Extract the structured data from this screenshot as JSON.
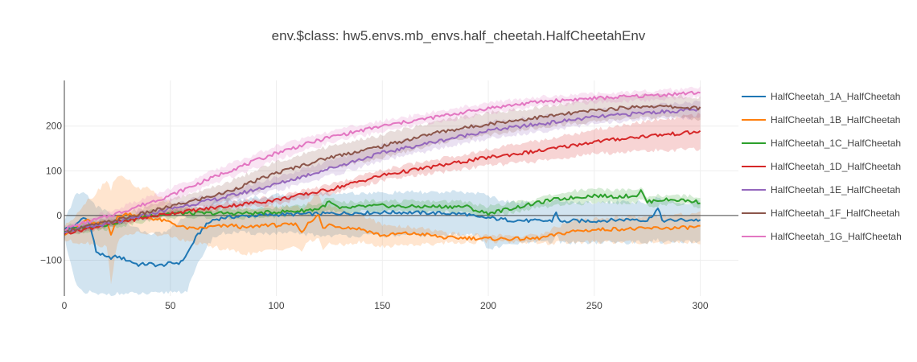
{
  "chart_data": {
    "type": "line",
    "title": "env.$class: hw5.envs.mb_envs.half_cheetah.HalfCheetahEnv",
    "xlabel": "",
    "ylabel": "",
    "xlim": [
      0,
      318
    ],
    "ylim": [
      -180,
      302
    ],
    "x_ticks": [
      0,
      50,
      100,
      150,
      200,
      250,
      300
    ],
    "y_ticks": [
      -100,
      0,
      100,
      200
    ],
    "x_tick_labels": [
      "0",
      "50",
      "100",
      "150",
      "200",
      "250",
      "300"
    ],
    "y_tick_labels": [
      "−100",
      "0",
      "100",
      "200"
    ],
    "grid": true,
    "legend_position": "right",
    "shaded_band": "variance band around each series",
    "series": [
      {
        "name": "HalfCheetah_1A_HalfCheetah",
        "color": "#1f77b4",
        "x": [
          0,
          5,
          8,
          10,
          12,
          15,
          20,
          25,
          30,
          35,
          40,
          45,
          50,
          55,
          58,
          62,
          66,
          70,
          75,
          80,
          90,
          100,
          110,
          120,
          130,
          140,
          150,
          160,
          170,
          180,
          190,
          195,
          200,
          205,
          210,
          220,
          230,
          232,
          234,
          240,
          250,
          260,
          270,
          275,
          280,
          282,
          284,
          290,
          300
        ],
        "y": [
          -30,
          -25,
          -8,
          -3,
          -20,
          -80,
          -95,
          -92,
          -100,
          -110,
          -108,
          -112,
          -107,
          -105,
          -85,
          -50,
          -25,
          -10,
          -5,
          -3,
          0,
          2,
          3,
          4,
          5,
          6,
          7,
          7,
          6,
          5,
          3,
          -5,
          -5,
          -8,
          -10,
          -12,
          -12,
          8,
          -15,
          -12,
          -12,
          -10,
          -8,
          -12,
          15,
          -10,
          -12,
          -10,
          -10
        ],
        "lower": [
          -45,
          -150,
          -170,
          -175,
          -170,
          -178,
          -175,
          -175,
          -175,
          -175,
          -175,
          -175,
          -170,
          -170,
          -168,
          -120,
          -80,
          -50,
          -40,
          -38,
          -40,
          -40,
          -40,
          -45,
          -45,
          -45,
          -45,
          -45,
          -45,
          -45,
          -40,
          -45,
          -75,
          -70,
          -65,
          -60,
          -60,
          -45,
          -60,
          -60,
          -60,
          -60,
          -60,
          -60,
          -55,
          -60,
          -60,
          -60,
          -60
        ],
        "upper": [
          -15,
          45,
          50,
          50,
          40,
          20,
          10,
          0,
          -20,
          -30,
          -40,
          -40,
          -30,
          -10,
          0,
          10,
          20,
          30,
          35,
          35,
          40,
          45,
          48,
          50,
          50,
          50,
          50,
          52,
          52,
          52,
          52,
          50,
          45,
          35,
          30,
          30,
          30,
          40,
          30,
          30,
          30,
          30,
          30,
          28,
          40,
          30,
          30,
          30,
          30
        ]
      },
      {
        "name": "HalfCheetah_1B_HalfCheetah",
        "color": "#ff7f0e",
        "x": [
          0,
          5,
          10,
          15,
          20,
          22,
          25,
          30,
          35,
          40,
          45,
          50,
          55,
          60,
          65,
          70,
          80,
          85,
          90,
          95,
          100,
          110,
          112,
          115,
          120,
          122,
          125,
          130,
          140,
          150,
          160,
          170,
          180,
          190,
          200,
          210,
          220,
          225,
          230,
          240,
          250,
          260,
          270,
          280,
          290,
          300
        ],
        "y": [
          -40,
          -30,
          -10,
          -20,
          -15,
          -40,
          -5,
          5,
          0,
          -5,
          -10,
          -15,
          -25,
          -30,
          -28,
          -25,
          -22,
          -28,
          -25,
          -20,
          -22,
          -20,
          -40,
          -15,
          0,
          -30,
          -20,
          -25,
          -30,
          -45,
          -40,
          -42,
          -50,
          -50,
          -52,
          -52,
          -52,
          -50,
          -45,
          -35,
          -32,
          -30,
          -30,
          -28,
          -28,
          -25
        ],
        "lower": [
          -55,
          -60,
          -60,
          -65,
          -70,
          -150,
          -60,
          -40,
          -40,
          -40,
          -45,
          -45,
          -55,
          -60,
          -65,
          -70,
          -80,
          -85,
          -85,
          -80,
          -75,
          -70,
          -80,
          -60,
          -50,
          -75,
          -65,
          -65,
          -60,
          -70,
          -65,
          -65,
          -60,
          -60,
          -58,
          -58,
          -60,
          -62,
          -62,
          -60,
          -60,
          -60,
          -60,
          -60,
          -60,
          -60
        ],
        "upper": [
          -25,
          0,
          30,
          50,
          80,
          60,
          90,
          80,
          60,
          60,
          40,
          30,
          20,
          15,
          15,
          15,
          15,
          15,
          15,
          20,
          20,
          20,
          10,
          30,
          50,
          20,
          25,
          15,
          0,
          -20,
          -25,
          -28,
          -40,
          -42,
          -45,
          -45,
          -45,
          -42,
          -30,
          -10,
          -8,
          -5,
          -2,
          0,
          2,
          5
        ]
      },
      {
        "name": "HalfCheetah_1C_HalfCheetah",
        "color": "#2ca02c",
        "x": [
          0,
          10,
          20,
          30,
          40,
          50,
          60,
          70,
          80,
          90,
          100,
          110,
          120,
          125,
          130,
          140,
          150,
          160,
          170,
          180,
          190,
          195,
          200,
          210,
          220,
          230,
          240,
          250,
          260,
          270,
          272,
          275,
          280,
          290,
          300
        ],
        "y": [
          -35,
          -25,
          -20,
          -10,
          0,
          5,
          5,
          5,
          5,
          5,
          8,
          10,
          15,
          30,
          15,
          20,
          22,
          20,
          20,
          20,
          20,
          10,
          5,
          15,
          25,
          35,
          40,
          45,
          42,
          45,
          55,
          30,
          35,
          35,
          30
        ],
        "lower": [
          -45,
          -35,
          -30,
          -20,
          -10,
          -5,
          -5,
          -5,
          -5,
          -5,
          -2,
          0,
          5,
          10,
          5,
          8,
          10,
          8,
          8,
          8,
          5,
          0,
          -5,
          5,
          15,
          20,
          25,
          30,
          28,
          30,
          40,
          20,
          22,
          25,
          20
        ],
        "upper": [
          -25,
          -15,
          -10,
          0,
          10,
          15,
          15,
          15,
          15,
          15,
          18,
          22,
          28,
          40,
          28,
          32,
          35,
          32,
          32,
          32,
          32,
          25,
          20,
          28,
          35,
          45,
          55,
          60,
          58,
          58,
          65,
          42,
          45,
          45,
          42
        ]
      },
      {
        "name": "HalfCheetah_1D_HalfCheetah",
        "color": "#d62728",
        "x": [
          0,
          25,
          50,
          75,
          100,
          125,
          150,
          175,
          200,
          225,
          250,
          275,
          300
        ],
        "y": [
          -40,
          -15,
          5,
          20,
          35,
          58,
          90,
          110,
          130,
          145,
          165,
          178,
          187
        ],
        "lower": [
          -45,
          -20,
          0,
          13,
          27,
          48,
          78,
          95,
          112,
          122,
          138,
          145,
          148
        ],
        "upper": [
          -35,
          -10,
          10,
          27,
          43,
          68,
          102,
          125,
          148,
          168,
          192,
          211,
          226
        ]
      },
      {
        "name": "HalfCheetah_1E_HalfCheetah",
        "color": "#9467bd",
        "x": [
          0,
          25,
          50,
          75,
          100,
          125,
          150,
          175,
          200,
          225,
          250,
          275,
          300
        ],
        "y": [
          -35,
          -15,
          15,
          40,
          70,
          105,
          140,
          165,
          190,
          205,
          220,
          230,
          237
        ],
        "lower": [
          -40,
          -22,
          5,
          28,
          55,
          88,
          122,
          148,
          172,
          188,
          205,
          215,
          220
        ],
        "upper": [
          -30,
          -8,
          25,
          52,
          85,
          122,
          158,
          182,
          208,
          222,
          235,
          245,
          254
        ]
      },
      {
        "name": "HalfCheetah_1F_HalfCheetah",
        "color": "#8c564b",
        "x": [
          0,
          25,
          50,
          75,
          100,
          125,
          150,
          175,
          200,
          225,
          250,
          275,
          300
        ],
        "y": [
          -35,
          -10,
          20,
          50,
          95,
          130,
          155,
          185,
          205,
          220,
          235,
          245,
          240
        ],
        "lower": [
          -42,
          -20,
          5,
          30,
          70,
          105,
          130,
          160,
          180,
          198,
          210,
          220,
          215
        ],
        "upper": [
          -28,
          0,
          35,
          70,
          120,
          155,
          180,
          210,
          230,
          242,
          260,
          270,
          265
        ]
      },
      {
        "name": "HalfCheetah_1G_HalfCheetah",
        "color": "#e377c2",
        "x": [
          0,
          25,
          50,
          75,
          100,
          125,
          150,
          175,
          200,
          225,
          250,
          275,
          300
        ],
        "y": [
          -30,
          5,
          45,
          95,
          140,
          175,
          200,
          220,
          240,
          255,
          262,
          268,
          275
        ],
        "lower": [
          -35,
          -5,
          30,
          80,
          125,
          162,
          188,
          208,
          228,
          245,
          252,
          258,
          265
        ],
        "upper": [
          -25,
          15,
          60,
          110,
          155,
          188,
          212,
          232,
          252,
          265,
          272,
          278,
          285
        ]
      }
    ]
  }
}
